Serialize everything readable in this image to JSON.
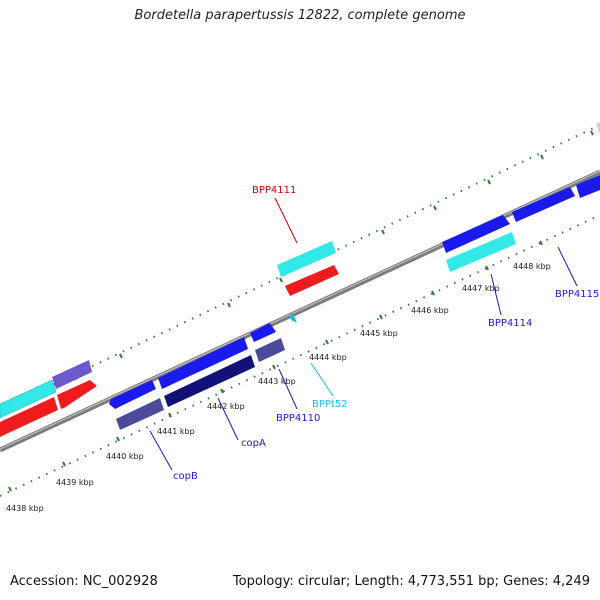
{
  "title": "Bordetella parapertussis 12822, complete genome",
  "footer": {
    "accession": "Accession: NC_002928",
    "summary": "Topology: circular; Length: 4,773,551 bp; Genes: 4,249"
  },
  "colors": {
    "backbone": "#8a8a8a",
    "ticks": "#2e7d32",
    "forward_cds": "#1a1aee",
    "reverse_cds": "#1a1a80",
    "rna": "#33e8e8",
    "red_feature": "#ee1c1c",
    "purple_feature": "#6a5acd"
  },
  "scale_labels": [
    "4438 kbp",
    "4439 kbp",
    "4440 kbp",
    "4441 kbp",
    "4442 kbp",
    "4443 kbp",
    "4444 kbp",
    "4445 kbp",
    "4446 kbp",
    "4447 kbp",
    "4448 kbp"
  ],
  "gene_labels": [
    {
      "text": "BPP4111",
      "color": "#cc0000"
    },
    {
      "text": "BPPt52",
      "color": "#17c1e0"
    },
    {
      "text": "BPP4110",
      "color": "#1a1acc"
    },
    {
      "text": "copA",
      "color": "#1a1acc"
    },
    {
      "text": "copB",
      "color": "#1a1acc"
    },
    {
      "text": "BPP4114",
      "color": "#1a1acc"
    },
    {
      "text": "BPP4115",
      "color": "#1a1acc"
    }
  ]
}
